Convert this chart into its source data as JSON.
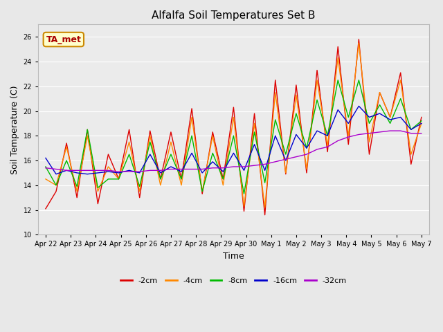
{
  "title": "Alfalfa Soil Temperatures Set B",
  "xlabel": "Time",
  "ylabel": "Soil Temperature (C)",
  "ylim": [
    10,
    27
  ],
  "yticks": [
    10,
    12,
    14,
    16,
    18,
    20,
    22,
    24,
    26
  ],
  "fig_bg": "#e8e8e8",
  "plot_bg": "#ebebeb",
  "grid_color": "#ffffff",
  "annotation_text": "TA_met",
  "annotation_color": "#aa0000",
  "annotation_bg": "#ffffcc",
  "annotation_border": "#cc8800",
  "colors": {
    "-2cm": "#dd0000",
    "-4cm": "#ff8800",
    "-8cm": "#00bb00",
    "-16cm": "#0000cc",
    "-32cm": "#aa00cc"
  },
  "x_labels": [
    "Apr 22",
    "Apr 23",
    "Apr 24",
    "Apr 25",
    "Apr 26",
    "Apr 27",
    "Apr 28",
    "Apr 29",
    "Apr 30",
    "May 1",
    "May 2",
    "May 3",
    "May 4",
    "May 5",
    "May 6",
    "May 7"
  ],
  "data": {
    "-2cm": [
      12.1,
      13.5,
      17.4,
      13.0,
      18.5,
      12.5,
      16.5,
      14.5,
      18.5,
      13.0,
      18.4,
      14.5,
      18.3,
      14.5,
      20.2,
      13.3,
      18.3,
      14.5,
      20.3,
      11.9,
      19.8,
      11.6,
      22.5,
      14.9,
      22.1,
      15.0,
      23.3,
      16.7,
      25.2,
      17.3,
      25.8,
      16.5,
      21.5,
      19.5,
      23.1,
      15.7,
      19.5
    ],
    "-4cm": [
      14.5,
      14.0,
      17.1,
      13.5,
      18.0,
      13.5,
      15.5,
      14.5,
      17.5,
      13.5,
      18.0,
      14.0,
      17.5,
      14.0,
      19.5,
      13.5,
      18.0,
      14.0,
      19.5,
      12.3,
      19.0,
      12.2,
      21.5,
      15.0,
      21.3,
      15.3,
      22.5,
      17.2,
      24.3,
      18.0,
      25.5,
      17.5,
      21.5,
      19.5,
      22.5,
      16.5,
      19.0
    ],
    "-8cm": [
      15.5,
      14.0,
      16.0,
      13.9,
      18.5,
      13.8,
      14.5,
      14.5,
      16.5,
      13.9,
      17.5,
      14.5,
      16.5,
      14.5,
      18.0,
      13.5,
      16.6,
      14.5,
      18.0,
      13.3,
      18.3,
      14.2,
      19.3,
      16.5,
      19.8,
      17.0,
      20.9,
      18.0,
      22.5,
      19.5,
      22.5,
      19.0,
      20.5,
      19.0,
      21.0,
      18.5,
      19.2
    ],
    "-16cm": [
      16.2,
      14.9,
      15.2,
      15.0,
      14.9,
      15.0,
      15.1,
      15.0,
      15.2,
      15.0,
      16.5,
      15.0,
      15.5,
      15.1,
      16.6,
      15.0,
      15.9,
      15.1,
      16.6,
      15.2,
      17.3,
      15.2,
      18.0,
      16.0,
      18.1,
      17.0,
      18.4,
      18.0,
      20.1,
      19.0,
      20.4,
      19.5,
      19.8,
      19.3,
      19.5,
      18.5,
      19.0
    ],
    "-32cm": [
      15.4,
      15.3,
      15.2,
      15.2,
      15.2,
      15.2,
      15.2,
      15.1,
      15.1,
      15.1,
      15.2,
      15.2,
      15.3,
      15.3,
      15.3,
      15.3,
      15.4,
      15.4,
      15.5,
      15.5,
      15.6,
      15.7,
      15.9,
      16.1,
      16.3,
      16.5,
      16.9,
      17.1,
      17.6,
      17.9,
      18.1,
      18.2,
      18.3,
      18.4,
      18.4,
      18.2,
      18.2
    ]
  },
  "series_keys": [
    "-2cm",
    "-4cm",
    "-8cm",
    "-16cm",
    "-32cm"
  ]
}
